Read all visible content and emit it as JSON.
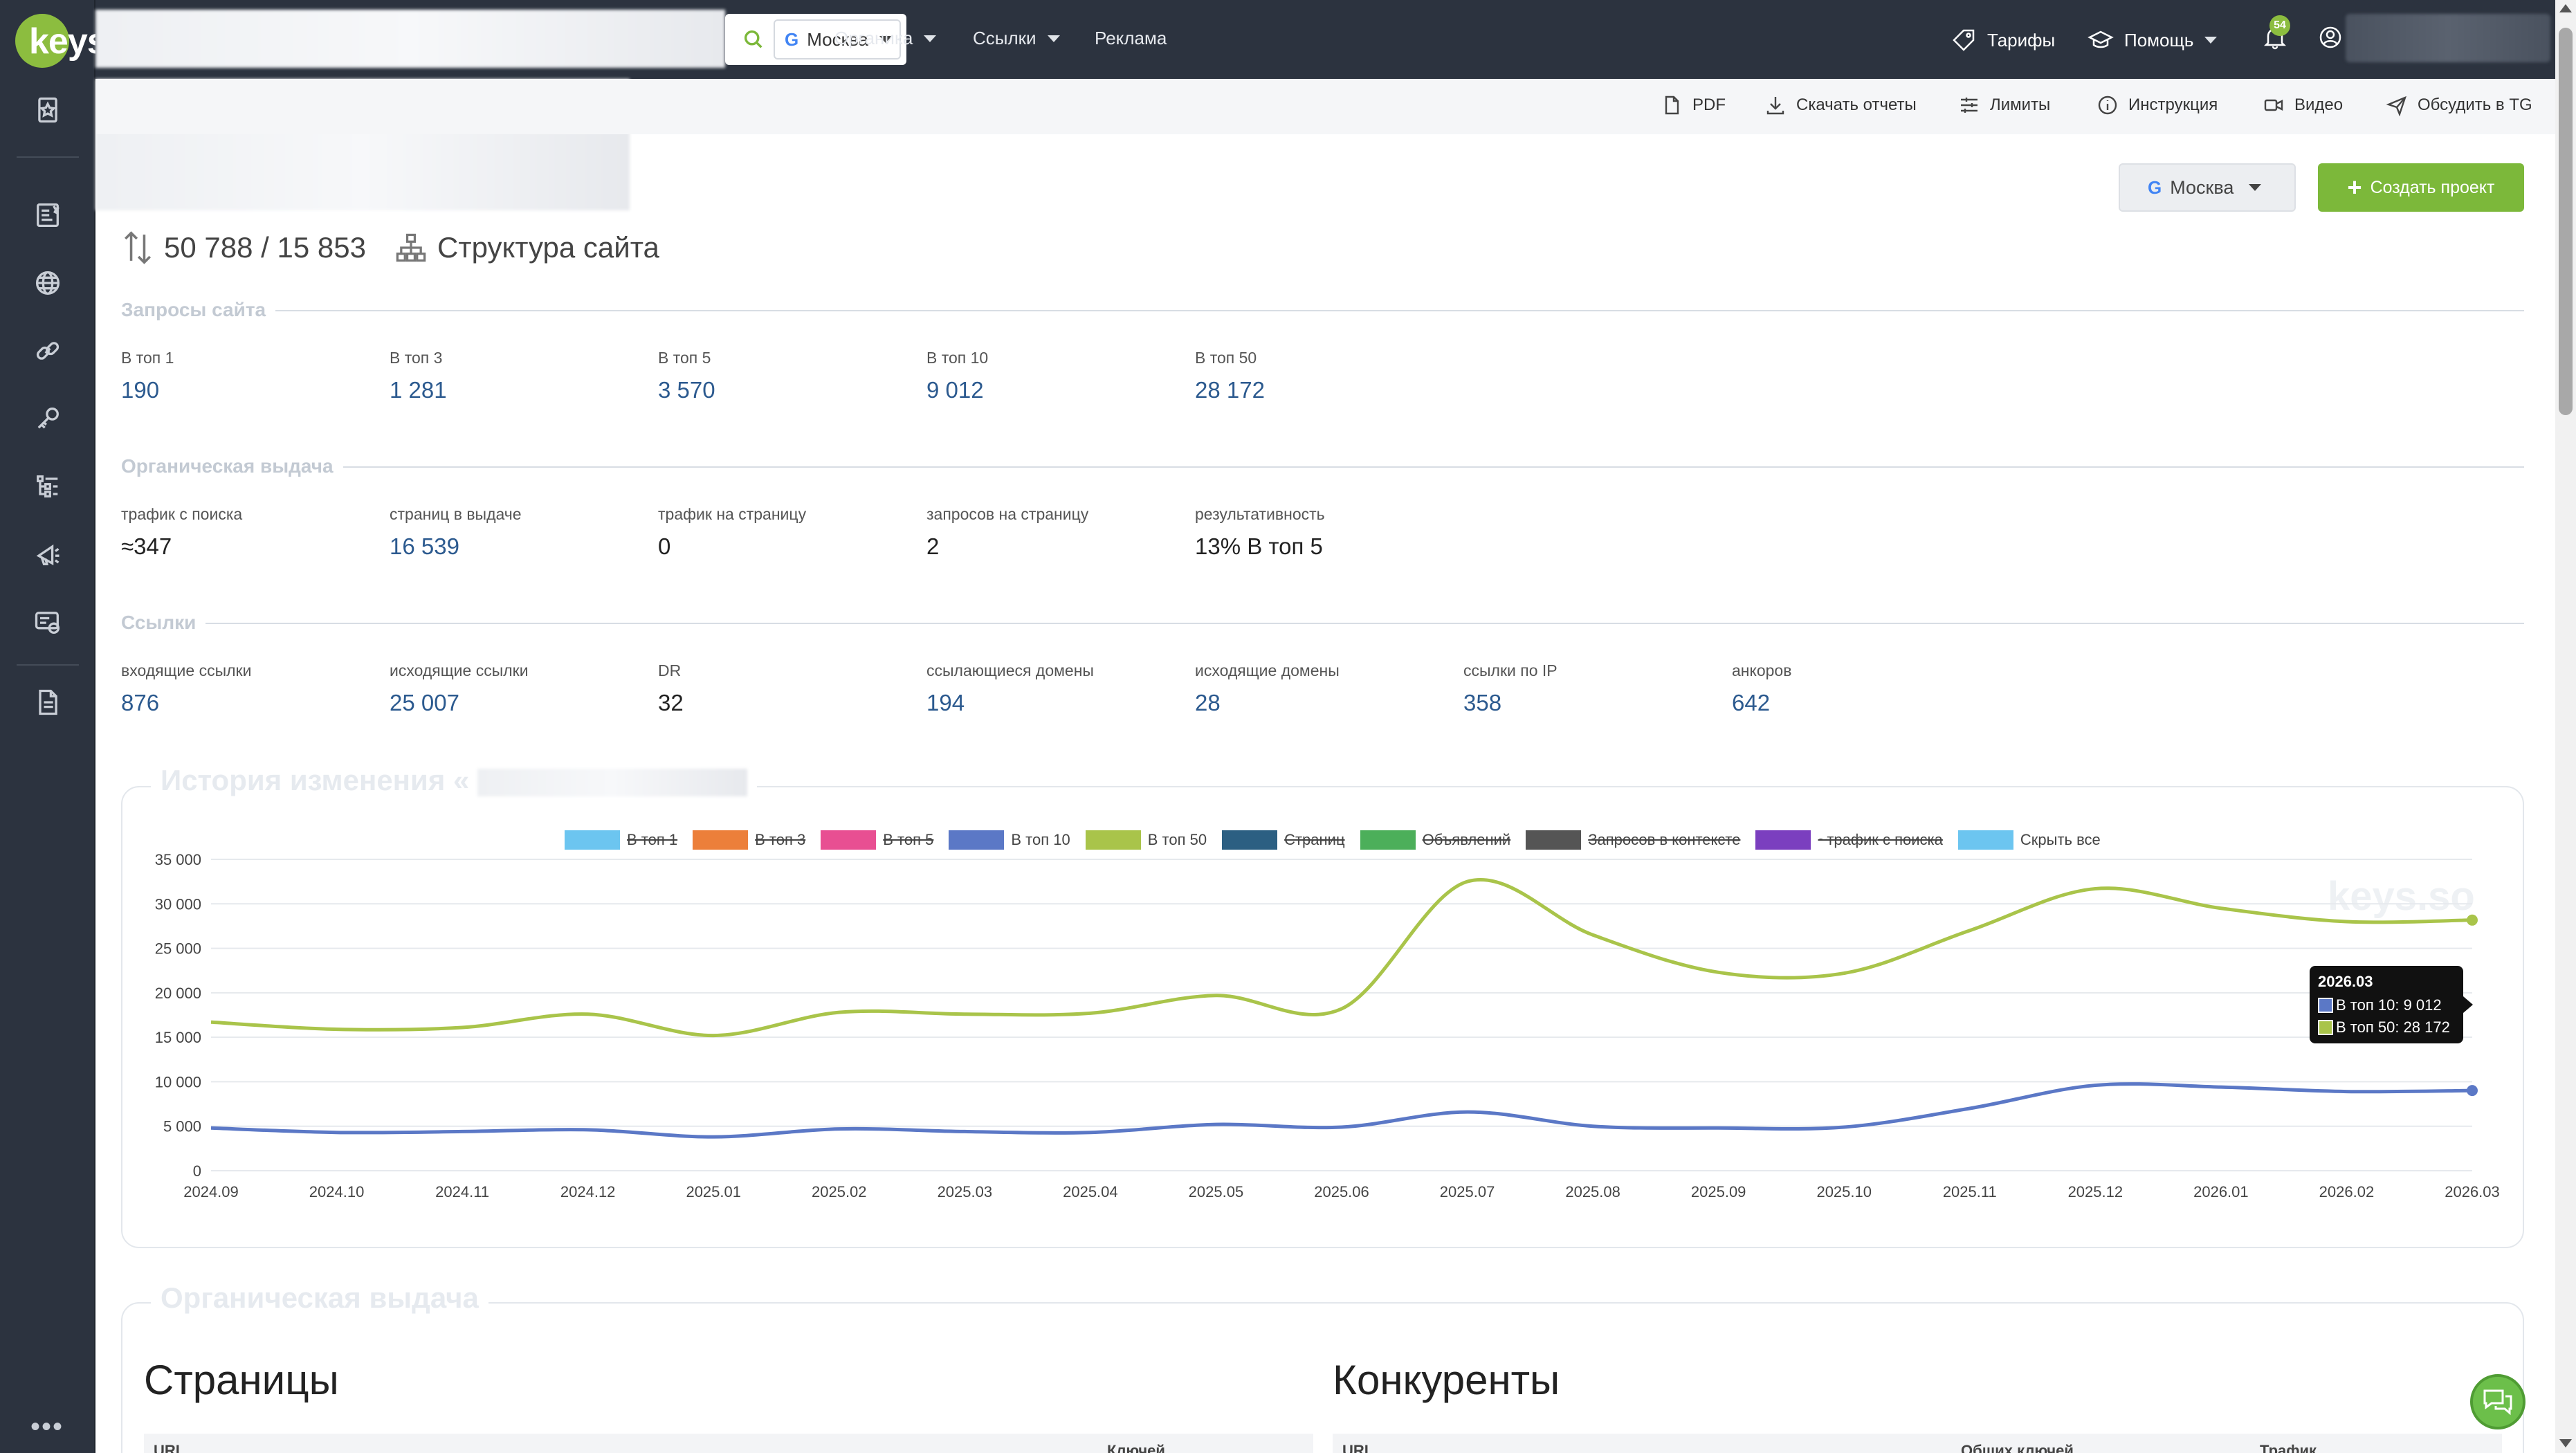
{
  "logo": {
    "text": "keys"
  },
  "search": {
    "engine_icon": "G",
    "region": "Москва"
  },
  "nav": [
    {
      "label": "Органика",
      "has_caret": true
    },
    {
      "label": "Ссылки",
      "has_caret": true
    },
    {
      "label": "Реклама",
      "has_caret": false
    }
  ],
  "top_right": {
    "tariffs": "Тарифы",
    "help": "Помощь",
    "notifications_count": "54"
  },
  "toolbar": {
    "pdf": "PDF",
    "download": "Скачать отчеты",
    "limits": "Лимиты",
    "instruction": "Инструкция",
    "video": "Видео",
    "discuss": "Обсудить в TG"
  },
  "region_button": {
    "engine_icon": "G",
    "label": "Москва"
  },
  "create_button": {
    "label": "Создать проект"
  },
  "headline": {
    "counts": "50 788 / 15 853",
    "structure": "Структура сайта"
  },
  "site_queries": {
    "title": "Запросы сайта",
    "items": [
      {
        "label": "В топ 1",
        "value": "190"
      },
      {
        "label": "В топ 3",
        "value": "1 281"
      },
      {
        "label": "В топ 5",
        "value": "3 570"
      },
      {
        "label": "В топ 10",
        "value": "9 012"
      },
      {
        "label": "В топ 50",
        "value": "28 172"
      }
    ]
  },
  "organic": {
    "title": "Органическая выдача",
    "items": [
      {
        "label": "трафик с поиска",
        "value": "≈347"
      },
      {
        "label": "страниц в выдаче",
        "value": "16 539"
      },
      {
        "label": "трафик на страницу",
        "value": "0"
      },
      {
        "label": "запросов на страницу",
        "value": "2"
      },
      {
        "label": "результативность",
        "value": "13% В топ 5"
      }
    ]
  },
  "links": {
    "title": "Ссылки",
    "items": [
      {
        "label": "входящие ссылки",
        "value": "876"
      },
      {
        "label": "исходящие ссылки",
        "value": "25 007"
      },
      {
        "label": "DR",
        "value": "32"
      },
      {
        "label": "ссылающиеся домены",
        "value": "194"
      },
      {
        "label": "исходящие домены",
        "value": "28"
      },
      {
        "label": "ссылки по IP",
        "value": "358"
      },
      {
        "label": "анкоров",
        "value": "642"
      }
    ]
  },
  "history_card": {
    "title": "История изменения «"
  },
  "legend": [
    {
      "label": "В топ 1",
      "color": "#6cc5f0",
      "active": false
    },
    {
      "label": "В топ 3",
      "color": "#ec7f3a",
      "active": false
    },
    {
      "label": "В топ 5",
      "color": "#e84f92",
      "active": false
    },
    {
      "label": "В топ 10",
      "color": "#5b78c6",
      "active": true
    },
    {
      "label": "В топ 50",
      "color": "#a9c44a",
      "active": true
    },
    {
      "label": "Страниц",
      "color": "#2c5f82",
      "active": false
    },
    {
      "label": "Объявлений",
      "color": "#4caf5a",
      "active": false
    },
    {
      "label": "Запросов в контексте",
      "color": "#555555",
      "active": false
    },
    {
      "label": "~трафик с поиска",
      "color": "#7b3fbf",
      "active": false
    },
    {
      "label": "Скрыть все",
      "color": "#6cc5f0",
      "active": true
    }
  ],
  "chart_data": {
    "type": "line",
    "x": [
      "2024.09",
      "2024.10",
      "2024.11",
      "2024.12",
      "2025.01",
      "2025.02",
      "2025.03",
      "2025.04",
      "2025.05",
      "2025.06",
      "2025.07",
      "2025.08",
      "2025.09",
      "2025.10",
      "2025.11",
      "2025.12",
      "2026.01",
      "2026.02",
      "2026.03"
    ],
    "series": [
      {
        "name": "В топ 10",
        "color": "#5b78c6",
        "values": [
          4800,
          4300,
          4400,
          4600,
          3800,
          4700,
          4400,
          4300,
          5200,
          4900,
          6600,
          5000,
          4800,
          4900,
          7000,
          9600,
          9400,
          8900,
          9012
        ]
      },
      {
        "name": "В топ 50",
        "color": "#a9c44a",
        "values": [
          16700,
          15900,
          16100,
          17600,
          15200,
          17800,
          17600,
          17700,
          19700,
          18200,
          32500,
          26500,
          22300,
          22200,
          27000,
          31700,
          29500,
          28000,
          28172
        ]
      }
    ],
    "yticks": [
      "35 000",
      "30 000",
      "25 000",
      "20 000",
      "15 000",
      "10 000",
      "5 000",
      "0"
    ],
    "ylim": [
      0,
      35000
    ],
    "grid": true,
    "legend_position": "top"
  },
  "tooltip": {
    "title": "2026.03",
    "rows": [
      {
        "text": "В топ 10: 9 012",
        "color": "#5b78c6"
      },
      {
        "text": "В топ 50: 28 172",
        "color": "#a9c44a"
      }
    ]
  },
  "watermark": "keys.so",
  "organic_card": {
    "title": "Органическая выдача"
  },
  "pages_block": {
    "title": "Страницы",
    "col1": "URL",
    "col2": "Ключей"
  },
  "competitors_block": {
    "title": "Конкуренты",
    "col1": "URL",
    "col2": "Общих ключей",
    "col3": "Трафик"
  }
}
